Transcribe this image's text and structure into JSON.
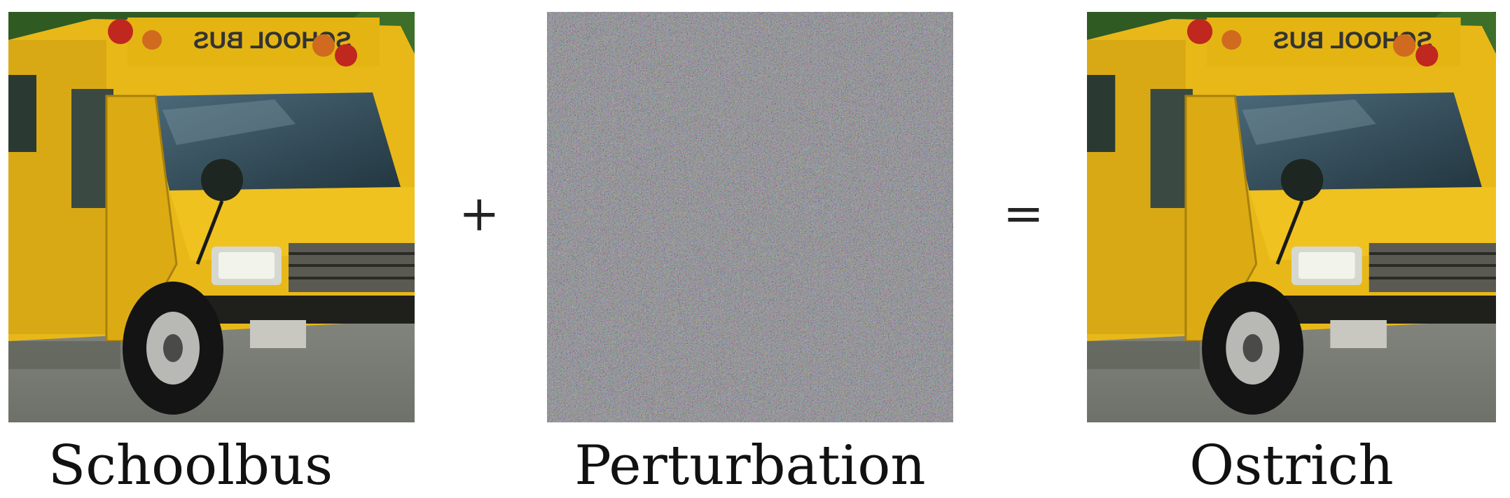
{
  "figure": {
    "operators": {
      "plus": "+",
      "equals": "="
    },
    "captions": {
      "left": "Schoolbus",
      "middle": "Perturbation",
      "right": "Ostrich"
    },
    "bus_sign_text": "SCHOOL BUS",
    "colors": {
      "bus_yellow": "#e8b818",
      "bus_shadow": "#b98c0c",
      "foliage": "#2f5a22",
      "road": "#7c7f78",
      "noise_base": "#7f7d86"
    }
  }
}
